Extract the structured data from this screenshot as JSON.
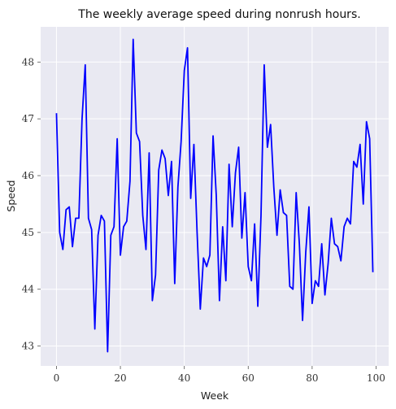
{
  "chart_data": {
    "type": "line",
    "title": "The weekly average speed during nonrush hours.",
    "xlabel": "Week",
    "ylabel": "Speed",
    "xlim": [
      -4.95,
      103.95
    ],
    "ylim": [
      42.65,
      48.62
    ],
    "xticks": [
      0,
      20,
      40,
      60,
      80,
      100
    ],
    "yticks": [
      43,
      44,
      45,
      46,
      47,
      48
    ],
    "grid": true,
    "background": "#e9e9f2",
    "series": [
      {
        "color": "#0000ff",
        "x": [
          0,
          1,
          2,
          3,
          4,
          5,
          6,
          7,
          8,
          9,
          10,
          11,
          12,
          13,
          14,
          15,
          16,
          17,
          18,
          19,
          20,
          21,
          22,
          23,
          24,
          25,
          26,
          27,
          28,
          29,
          30,
          31,
          32,
          33,
          34,
          35,
          36,
          37,
          38,
          39,
          40,
          41,
          42,
          43,
          44,
          45,
          46,
          47,
          48,
          49,
          50,
          51,
          52,
          53,
          54,
          55,
          56,
          57,
          58,
          59,
          60,
          61,
          62,
          63,
          64,
          65,
          66,
          67,
          68,
          69,
          70,
          71,
          72,
          73,
          74,
          75,
          76,
          77,
          78,
          79,
          80,
          81,
          82,
          83,
          84,
          85,
          86,
          87,
          88,
          89,
          90,
          91,
          92,
          93,
          94,
          95,
          96,
          97,
          98,
          99
        ],
        "values": [
          47.1,
          45.0,
          44.7,
          45.4,
          45.45,
          44.75,
          45.25,
          45.25,
          47.0,
          47.95,
          45.25,
          45.05,
          43.3,
          44.95,
          45.3,
          45.2,
          42.9,
          44.95,
          45.1,
          46.65,
          44.6,
          45.1,
          45.2,
          45.9,
          48.4,
          46.75,
          46.6,
          45.3,
          44.7,
          46.4,
          43.8,
          44.25,
          46.1,
          46.45,
          46.3,
          45.65,
          46.25,
          44.1,
          45.8,
          46.6,
          47.85,
          48.25,
          45.6,
          46.55,
          45.0,
          43.65,
          44.55,
          44.4,
          44.6,
          46.7,
          45.65,
          43.8,
          45.1,
          44.15,
          46.2,
          45.1,
          46.05,
          46.5,
          44.9,
          45.7,
          44.4,
          44.15,
          45.15,
          43.7,
          45.3,
          47.95,
          46.5,
          46.9,
          45.8,
          44.95,
          45.75,
          45.35,
          45.3,
          44.05,
          44.0,
          45.7,
          44.8,
          43.45,
          44.65,
          45.45,
          43.75,
          44.15,
          44.05,
          44.8,
          43.9,
          44.45,
          45.25,
          44.8,
          44.75,
          44.5,
          45.1,
          45.25,
          45.15,
          46.25,
          46.15,
          46.55,
          45.5,
          46.95,
          46.65,
          44.3
        ]
      }
    ]
  }
}
